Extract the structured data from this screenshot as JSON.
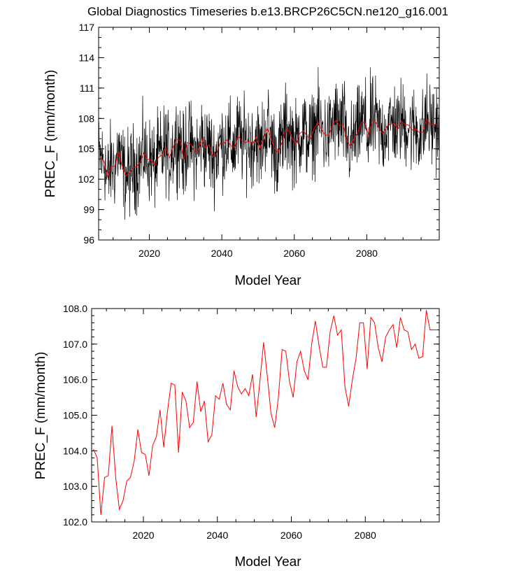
{
  "title": "Global Diagnostics Timeseries b.e13.BRCP26C5CN.ne120_g16.001",
  "colors": {
    "monthly": "#000000",
    "annual": "#ff0000",
    "axes": "#000000"
  },
  "chart_data": [
    {
      "type": "line",
      "title": "Global Diagnostics Timeseries b.e13.BRCP26C5CN.ne120_g16.001",
      "xlabel": "Model Year",
      "ylabel": "PREC_F (mm/month)",
      "xlim": [
        2006,
        2100
      ],
      "ylim": [
        96,
        117
      ],
      "xticks": [
        2020,
        2040,
        2060,
        2080
      ],
      "xtick_labels": [
        "2020",
        "2040",
        "2060",
        "2080"
      ],
      "yticks": [
        96,
        99,
        102,
        105,
        108,
        111,
        114,
        117
      ],
      "ytick_labels": [
        "96",
        "99",
        "102",
        "105",
        "108",
        "111",
        "114",
        "117"
      ],
      "grid": false,
      "series": [
        {
          "name": "monthly",
          "color": "#000000",
          "note": "monthly values fluctuating ~±4 around the annual mean (98–114)"
        },
        {
          "name": "annual mean",
          "color": "#ff0000",
          "ref": "annual_mean"
        }
      ]
    },
    {
      "type": "line",
      "xlabel": "Model Year",
      "ylabel": "PREC_F (mm/month)",
      "xlim": [
        2006,
        2100
      ],
      "ylim": [
        102.0,
        108.0
      ],
      "xticks": [
        2020,
        2040,
        2060,
        2080
      ],
      "xtick_labels": [
        "2020",
        "2040",
        "2060",
        "2080"
      ],
      "yticks": [
        102.0,
        103.0,
        104.0,
        105.0,
        106.0,
        107.0,
        108.0
      ],
      "ytick_labels": [
        "102.0",
        "103.0",
        "104.0",
        "105.0",
        "106.0",
        "107.0",
        "108.0"
      ],
      "grid": false,
      "series": [
        {
          "name": "annual mean",
          "color": "#ff0000",
          "ref": "annual_mean"
        }
      ]
    }
  ],
  "annual_mean": {
    "x": [
      2006,
      2007,
      2008,
      2009,
      2010,
      2011,
      2012,
      2013,
      2014,
      2015,
      2016,
      2017,
      2018,
      2019,
      2020,
      2021,
      2022,
      2023,
      2024,
      2025,
      2026,
      2027,
      2028,
      2029,
      2030,
      2031,
      2032,
      2033,
      2034,
      2035,
      2036,
      2037,
      2038,
      2039,
      2040,
      2041,
      2042,
      2043,
      2044,
      2045,
      2046,
      2047,
      2048,
      2049,
      2050,
      2051,
      2052,
      2053,
      2054,
      2055,
      2056,
      2057,
      2058,
      2059,
      2060,
      2061,
      2062,
      2063,
      2064,
      2065,
      2066,
      2067,
      2068,
      2069,
      2070,
      2071,
      2072,
      2073,
      2074,
      2075,
      2076,
      2077,
      2078,
      2079,
      2080,
      2081,
      2082,
      2083,
      2084,
      2085,
      2086,
      2087,
      2088,
      2089,
      2090,
      2091,
      2092,
      2093,
      2094,
      2095,
      2096,
      2097,
      2098,
      2099
    ],
    "y": [
      104.05,
      103.8,
      102.2,
      103.25,
      103.3,
      104.7,
      103.25,
      102.35,
      102.6,
      103.15,
      103.25,
      103.7,
      104.6,
      103.95,
      103.9,
      103.3,
      104.15,
      104.4,
      105.15,
      104.1,
      105.1,
      105.9,
      105.85,
      103.95,
      105.65,
      105.4,
      104.65,
      104.8,
      105.95,
      105.1,
      105.4,
      104.25,
      104.45,
      105.55,
      105.45,
      105.9,
      105.3,
      105.15,
      106.25,
      105.8,
      105.6,
      105.75,
      105.55,
      106.15,
      104.95,
      105.95,
      107.05,
      106.1,
      105.05,
      104.65,
      105.5,
      106.85,
      106.8,
      105.95,
      105.5,
      106.5,
      106.8,
      106.25,
      106.0,
      107.0,
      107.65,
      106.95,
      106.35,
      106.35,
      107.35,
      107.8,
      107.25,
      107.4,
      105.8,
      105.25,
      106.0,
      106.6,
      107.6,
      107.6,
      106.3,
      107.75,
      107.6,
      106.9,
      106.5,
      107.2,
      107.4,
      107.55,
      106.9,
      107.75,
      107.4,
      107.35,
      106.85,
      107.0,
      106.6,
      106.65,
      107.95,
      107.4,
      107.4,
      107.4
    ]
  }
}
